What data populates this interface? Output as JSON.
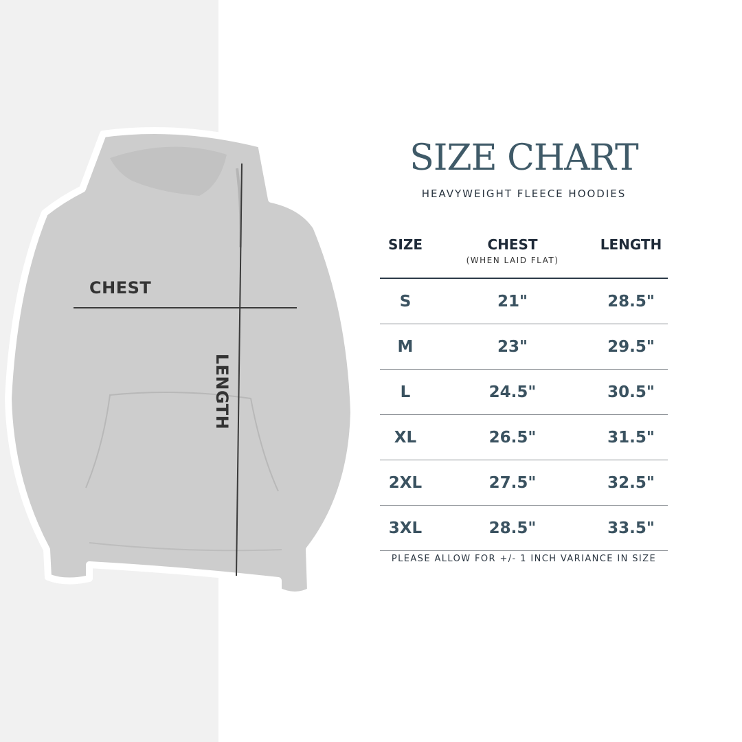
{
  "image": {
    "chest_label": "CHEST",
    "length_label": "LENGTH",
    "colors": {
      "left_background": "#f1f1f1",
      "hoodie": "#cdcdcd",
      "measure_line": "#3a3a3a"
    }
  },
  "header": {
    "title": "SIZE CHART",
    "subtitle": "HEAVYWEIGHT FLEECE HOODIES"
  },
  "table": {
    "columns": [
      {
        "label": "SIZE",
        "sub": ""
      },
      {
        "label": "CHEST",
        "sub": "(WHEN LAID FLAT)"
      },
      {
        "label": "LENGTH",
        "sub": ""
      }
    ],
    "rows": [
      [
        "S",
        "21\"",
        "28.5\""
      ],
      [
        "M",
        "23\"",
        "29.5\""
      ],
      [
        "L",
        "24.5\"",
        "30.5\""
      ],
      [
        "XL",
        "26.5\"",
        "31.5\""
      ],
      [
        "2XL",
        "27.5\"",
        "32.5\""
      ],
      [
        "3XL",
        "28.5\"",
        "33.5\""
      ]
    ]
  },
  "footer": {
    "note": "PLEASE ALLOW FOR +/- 1 INCH VARIANCE IN SIZE"
  },
  "colors": {
    "title": "#3f5a68",
    "values": "#3a5260",
    "headers": "#1e2a38"
  }
}
